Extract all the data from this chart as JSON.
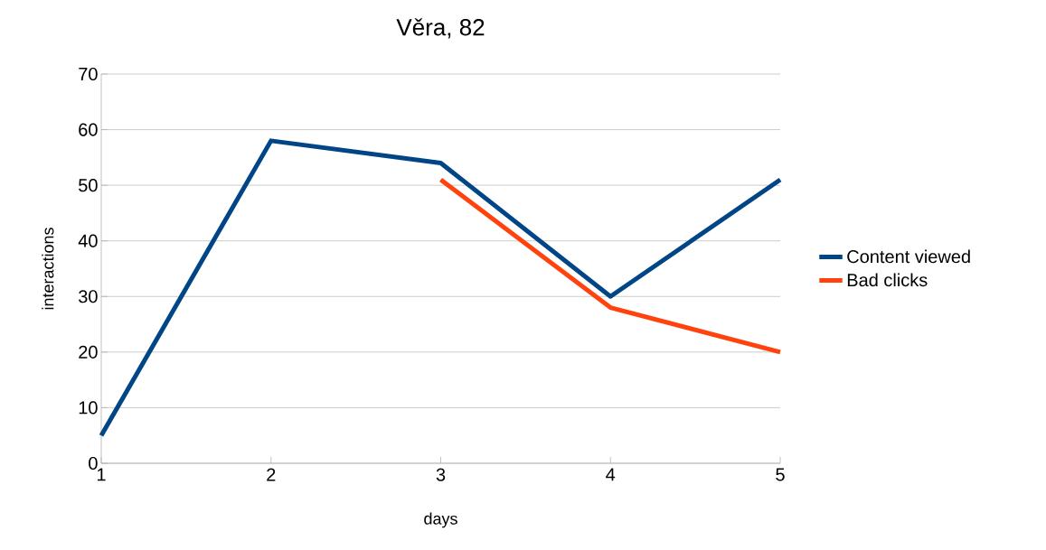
{
  "chart_data": {
    "type": "line",
    "title": "Věra, 82",
    "xlabel": "days",
    "ylabel": "interactions",
    "x": [
      1,
      2,
      3,
      4,
      5
    ],
    "series": [
      {
        "name": "Content viewed",
        "color": "#004586",
        "values": [
          5,
          58,
          54,
          30,
          51
        ]
      },
      {
        "name": "Bad clicks",
        "color": "#ff420e",
        "values": [
          null,
          null,
          51,
          28,
          20
        ]
      }
    ],
    "xlim": [
      1,
      5
    ],
    "xticks": [
      1,
      2,
      3,
      4,
      5
    ],
    "ylim": [
      0,
      70
    ],
    "yticks": [
      0,
      10,
      20,
      30,
      40,
      50,
      60,
      70
    ],
    "grid": "y",
    "legend": "right",
    "marker": "none",
    "line_style": "solid"
  }
}
